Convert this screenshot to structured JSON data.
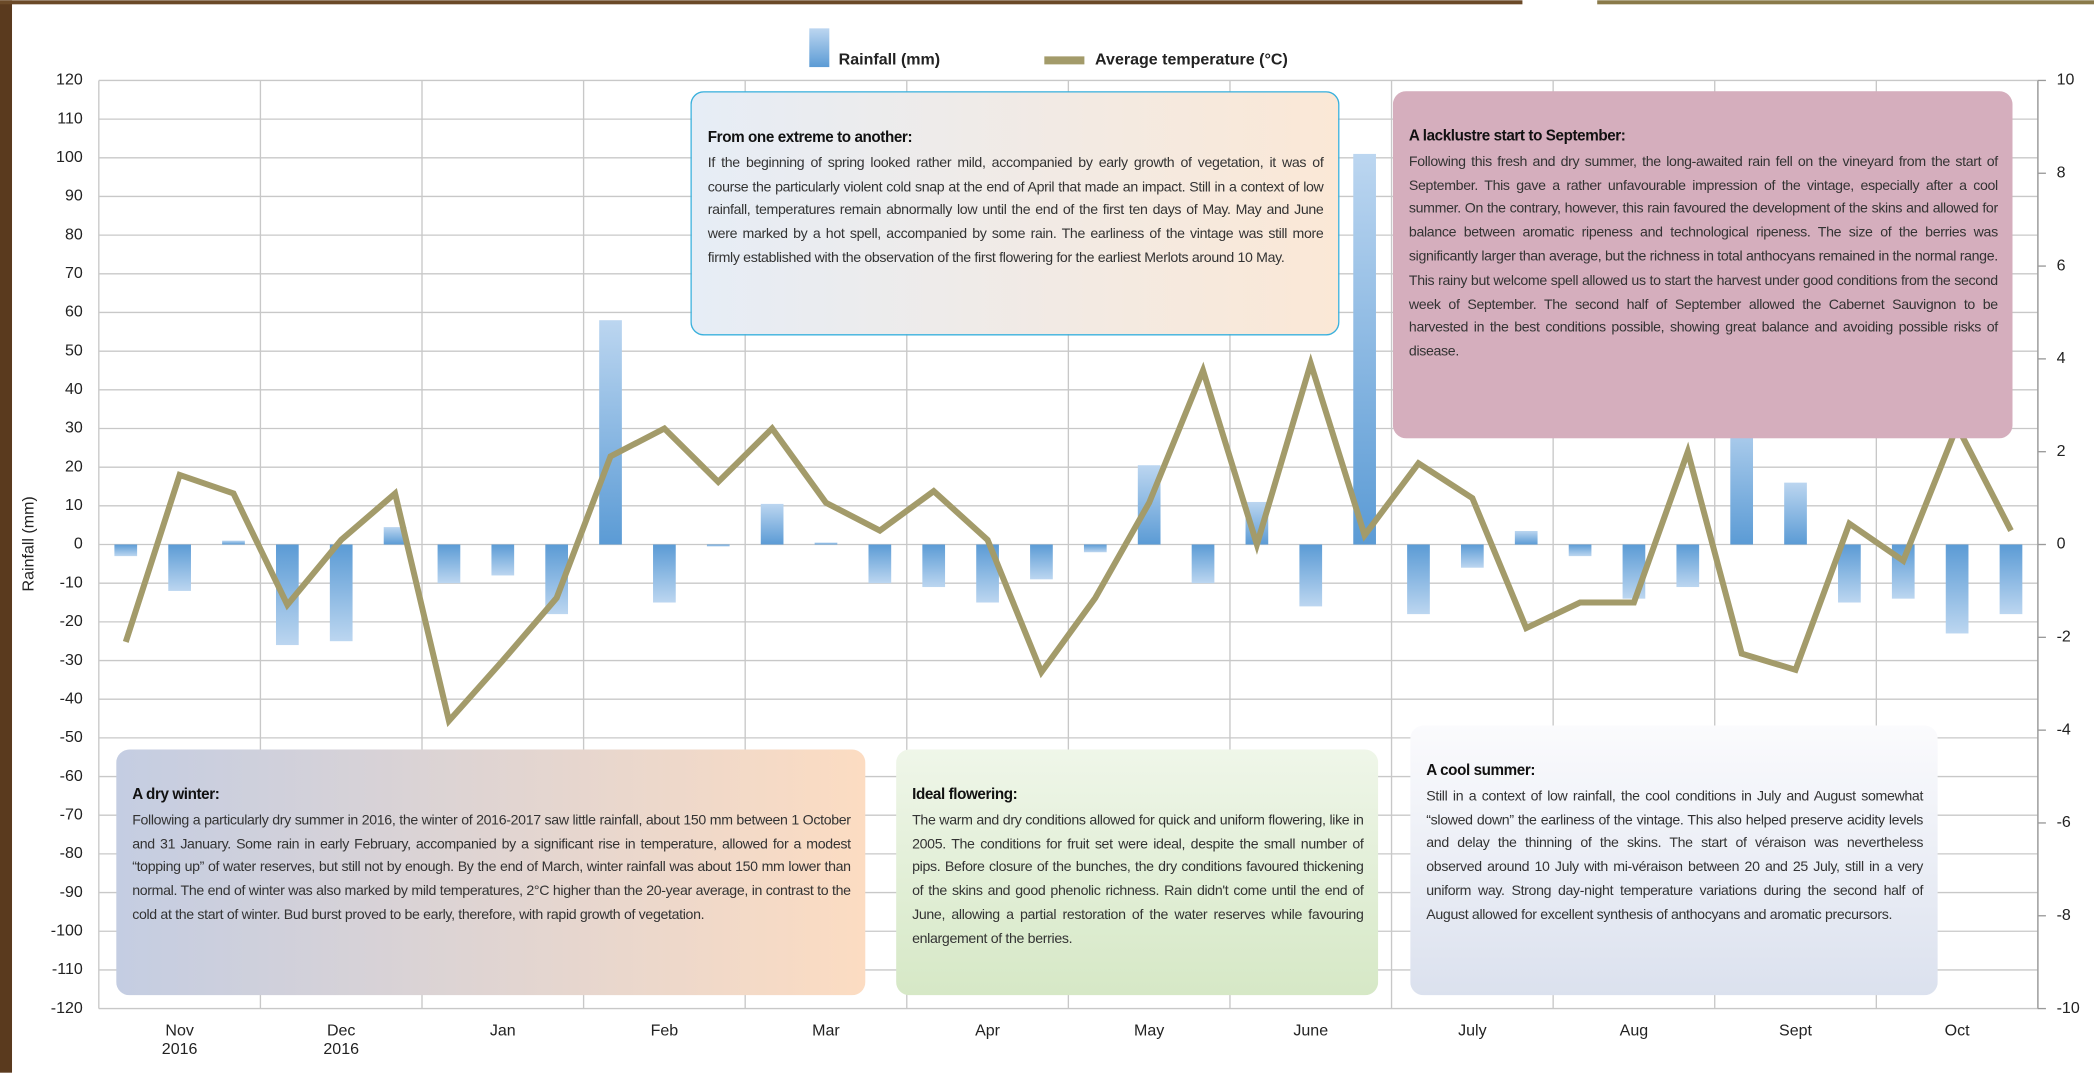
{
  "chart_data": {
    "type": "bar_line",
    "categories": [
      null,
      "Nov 2016",
      null,
      null,
      "Dec 2016",
      null,
      null,
      "Jan",
      null,
      null,
      "Feb",
      null,
      null,
      "Mar",
      null,
      null,
      "Apr",
      null,
      null,
      "May",
      null,
      null,
      "June",
      null,
      null,
      "July",
      null,
      null,
      "Aug",
      null,
      null,
      "Sept",
      null,
      null,
      "Oct",
      null
    ],
    "series": [
      {
        "name": "Rainfall (mm)",
        "type": "bar",
        "color": "#5b9bd5",
        "values": [
          -3,
          -12,
          1,
          -26,
          -25,
          4.5,
          -10,
          -8,
          -18,
          58,
          -15,
          -0.5,
          10.5,
          0.5,
          -10,
          -11,
          -15,
          -9,
          -2,
          20.5,
          -10,
          11,
          -16,
          101,
          -18,
          -6,
          3.5,
          -3,
          -14,
          -11,
          35,
          16,
          -15,
          -14,
          -23,
          -18
        ]
      },
      {
        "name": "Average temperature (°C)",
        "type": "line",
        "axis": "y2",
        "color": "#a39b6a",
        "values": [
          -2.1,
          1.5,
          1.1,
          -1.3,
          0.1,
          1.1,
          -3.8,
          -2.5,
          -1.15,
          1.9,
          2.5,
          1.35,
          2.5,
          0.9,
          0.3,
          1.15,
          0.1,
          -2.75,
          -1.15,
          0.9,
          3.75,
          0,
          3.9,
          0.2,
          1.75,
          1.0,
          -1.8,
          -1.25,
          -1.25,
          2.0,
          -2.35,
          -2.7,
          0.45,
          -0.35,
          2.55,
          0.3
        ]
      }
    ],
    "y_label": "Rainfall (mm)",
    "ylim": [
      -120,
      120
    ],
    "yticks": [
      -120,
      -110,
      -100,
      -90,
      -80,
      -70,
      -60,
      -50,
      -40,
      -30,
      -20,
      -10,
      0,
      10,
      20,
      30,
      40,
      50,
      60,
      70,
      80,
      90,
      100,
      110,
      120
    ],
    "y2lim": [
      -10,
      10
    ],
    "y2ticks": [
      -10,
      -8,
      -6,
      -4,
      -2,
      0,
      2,
      4,
      6,
      8,
      10
    ],
    "grid": true,
    "legend": "top",
    "annotations": [
      {
        "title": "From one extreme to another:",
        "text": "If the beginning of spring looked rather mild, accompanied by early growth of vegetation, it was of course the particularly violent cold snap at the end of April that made an impact. Still in a context of low rainfall, temperatures remain abnormally low until the end of the first ten days of May. May and June were marked by a hot spell, accompanied by some rain. The earliness of the vintage was still more firmly established with the observation of the first flowering for the earliest Merlots around 10 May."
      },
      {
        "title": "A lacklustre start to September:",
        "text": "Following this fresh and dry summer, the long-awaited rain fell on the vineyard from the start of September. This gave a rather unfavourable impression of the vintage, especially after a cool summer. On the contrary, however, this rain favoured the development of the skins and allowed for balance between aromatic ripeness and technological ripeness. The size of the berries was significantly larger than average, but the richness in total anthocyans remained in the normal range. This rainy but welcome spell allowed us to start the harvest under good conditions from the second week of September. The second half of September allowed the Cabernet Sauvignon to be harvested in the best conditions possible, showing great balance and avoiding possible risks of disease."
      },
      {
        "title": "A dry winter:",
        "text": "Following a particularly dry summer in 2016, the winter of 2016-2017 saw little rainfall, about 150 mm between 1 October and 31 January. Some rain in early February, accompanied by a significant rise in temperature, allowed for a modest “topping up” of water reserves, but still not by enough. By the end of March, winter rainfall was about 150 mm lower than normal. The end of winter was also marked by mild temperatures, 2°C higher than the 20-year average, in contrast to the cold at the start of winter. Bud burst proved to be early, therefore, with rapid growth of vegetation."
      },
      {
        "title": "Ideal flowering:",
        "text": "The warm and dry conditions allowed for quick and uniform flowering, like in 2005. The conditions for fruit set were ideal, despite the small number of pips. Before closure of the bunches, the dry conditions favoured thickening of the skins and good phenolic richness. Rain didn't come until the end of June, allowing a partial restoration of the water reserves while favouring enlargement of the berries."
      },
      {
        "title": "A cool summer:",
        "text": "Still in a context of low rainfall, the cool conditions in July and August somewhat “slowed down” the earliness of the vintage. This also helped preserve acidity levels and delay the thinning of the skins. The start of véraison was nevertheless observed around 10 July with mi-véraison between 20 and 25 July, still in a very uniform way. Strong day-night temperature variations during the second half of August allowed for excellent synthesis of anthocyans and aromatic precursors."
      }
    ]
  }
}
